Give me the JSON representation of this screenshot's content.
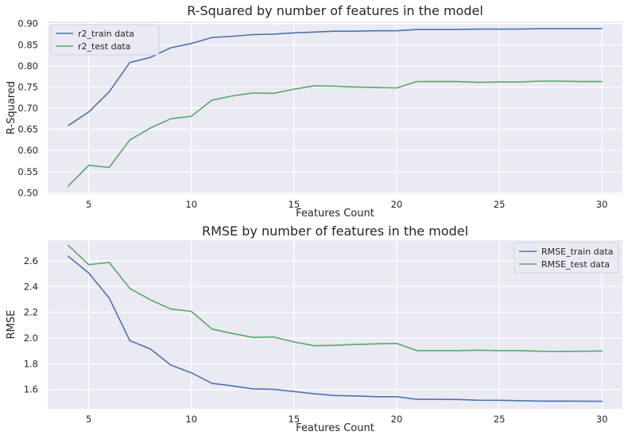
{
  "chart_data": [
    {
      "type": "line",
      "title": "R-Squared by number of features in the model",
      "xlabel": "Features Count",
      "ylabel": "R-Squared",
      "x": [
        4,
        5,
        6,
        7,
        8,
        9,
        10,
        11,
        12,
        13,
        14,
        15,
        16,
        17,
        18,
        19,
        20,
        21,
        22,
        23,
        24,
        25,
        26,
        27,
        28,
        29,
        30
      ],
      "xticks": [
        5,
        10,
        15,
        20,
        25,
        30
      ],
      "yticks": [
        0.5,
        0.55,
        0.6,
        0.65,
        0.7,
        0.75,
        0.8,
        0.85,
        0.9
      ],
      "ytick_labels": [
        "0.50",
        "0.55",
        "0.60",
        "0.65",
        "0.70",
        "0.75",
        "0.80",
        "0.85",
        "0.90"
      ],
      "xlim": [
        3.0,
        31.0
      ],
      "ylim": [
        0.497,
        0.905
      ],
      "grid": true,
      "legend_position": "top-left",
      "series": [
        {
          "name": "r2_train data",
          "color": "#4c72b0",
          "values": [
            0.659,
            0.691,
            0.739,
            0.808,
            0.82,
            0.843,
            0.853,
            0.867,
            0.87,
            0.874,
            0.875,
            0.878,
            0.88,
            0.882,
            0.882,
            0.883,
            0.883,
            0.886,
            0.886,
            0.886,
            0.887,
            0.887,
            0.887,
            0.888,
            0.888,
            0.888,
            0.888
          ]
        },
        {
          "name": "r2_test data",
          "color": "#55a868",
          "values": [
            0.516,
            0.565,
            0.56,
            0.625,
            0.653,
            0.675,
            0.681,
            0.719,
            0.729,
            0.736,
            0.735,
            0.745,
            0.753,
            0.752,
            0.75,
            0.749,
            0.748,
            0.763,
            0.763,
            0.763,
            0.761,
            0.762,
            0.762,
            0.764,
            0.764,
            0.763,
            0.763
          ]
        }
      ]
    },
    {
      "type": "line",
      "title": "RMSE by number of features in the model",
      "xlabel": "Features Count",
      "ylabel": "RMSE",
      "x": [
        4,
        5,
        6,
        7,
        8,
        9,
        10,
        11,
        12,
        13,
        14,
        15,
        16,
        17,
        18,
        19,
        20,
        21,
        22,
        23,
        24,
        25,
        26,
        27,
        28,
        29,
        30
      ],
      "xticks": [
        5,
        10,
        15,
        20,
        25,
        30
      ],
      "yticks": [
        1.6,
        1.8,
        2.0,
        2.2,
        2.4,
        2.6
      ],
      "ytick_labels": [
        "1.6",
        "1.8",
        "2.0",
        "2.2",
        "2.4",
        "2.6"
      ],
      "xlim": [
        3.0,
        31.0
      ],
      "ylim": [
        1.45,
        2.76
      ],
      "grid": true,
      "legend_position": "top-right",
      "series": [
        {
          "name": "RMSE_train data",
          "color": "#4c72b0",
          "values": [
            2.635,
            2.505,
            2.31,
            1.98,
            1.915,
            1.79,
            1.73,
            1.648,
            1.628,
            1.605,
            1.602,
            1.584,
            1.567,
            1.553,
            1.55,
            1.544,
            1.544,
            1.524,
            1.524,
            1.522,
            1.517,
            1.516,
            1.513,
            1.51,
            1.51,
            1.509,
            1.508
          ]
        },
        {
          "name": "RMSE_test data",
          "color": "#55a868",
          "values": [
            2.72,
            2.57,
            2.587,
            2.385,
            2.297,
            2.225,
            2.207,
            2.07,
            2.035,
            2.005,
            2.008,
            1.97,
            1.94,
            1.943,
            1.95,
            1.955,
            1.958,
            1.902,
            1.902,
            1.902,
            1.905,
            1.902,
            1.902,
            1.897,
            1.896,
            1.897,
            1.899
          ]
        }
      ]
    }
  ]
}
